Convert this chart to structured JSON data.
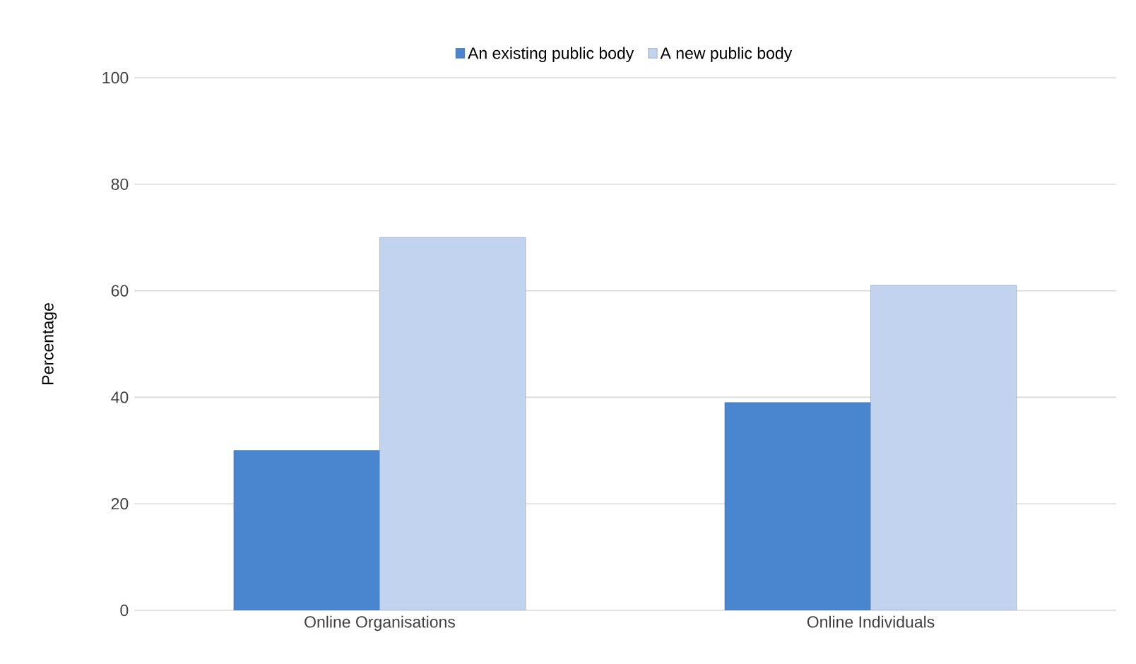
{
  "chart_data": {
    "type": "bar",
    "categories": [
      "Online Organisations",
      "Online Individuals"
    ],
    "ylabel": "Percentage",
    "ylim": [
      0,
      100
    ],
    "yticks": [
      0,
      20,
      40,
      60,
      80,
      100
    ],
    "grid": "y",
    "legend": "top",
    "series": [
      {
        "name": "An existing public body",
        "color": "#4a86cf",
        "values": [
          30,
          39
        ]
      },
      {
        "name": "A new public body",
        "color": "#c1d3ee",
        "values": [
          70,
          61
        ]
      }
    ]
  }
}
